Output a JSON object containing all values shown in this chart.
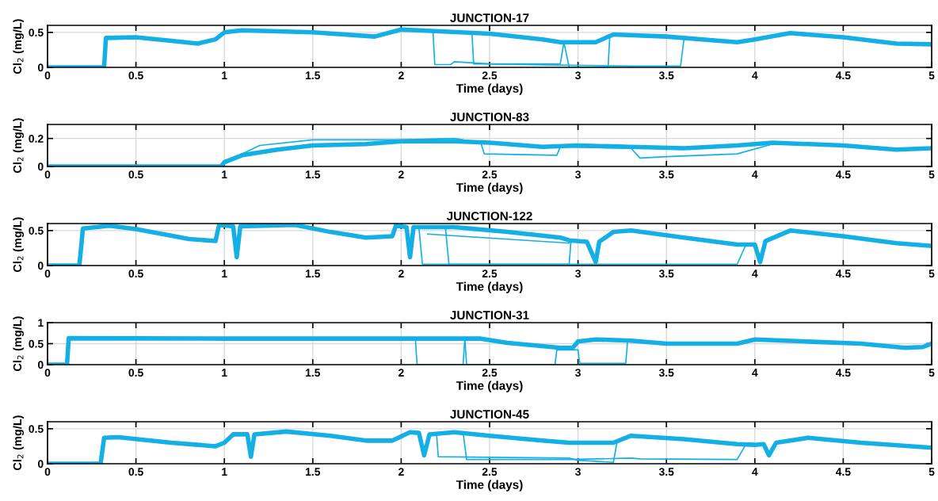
{
  "chart_data": [
    {
      "type": "line",
      "title": "JUNCTION-17",
      "xlabel": "Time (days)",
      "ylabel": "Cl$_{2}$ (mg/L)",
      "xlim": [
        0,
        5
      ],
      "xticks": [
        0,
        0.5,
        1,
        1.5,
        2,
        2.5,
        3,
        3.5,
        4,
        4.5,
        5
      ],
      "ylim": [
        0,
        0.6
      ],
      "yticks": [
        0,
        0.5
      ],
      "grid": true,
      "series": [
        {
          "color": "#14afe4",
          "x": [
            0,
            0.32,
            0.33,
            0.5,
            0.7,
            0.85,
            0.95,
            1.0,
            1.1,
            1.5,
            1.85,
            2.0,
            2.1,
            2.5,
            2.8,
            2.9,
            3.1,
            3.2,
            3.5,
            3.8,
            3.9,
            4.0,
            4.2,
            4.5,
            4.8,
            5.0
          ],
          "values": [
            0,
            0,
            0.42,
            0.43,
            0.38,
            0.34,
            0.4,
            0.5,
            0.53,
            0.5,
            0.44,
            0.54,
            0.53,
            0.48,
            0.4,
            0.36,
            0.36,
            0.47,
            0.44,
            0.38,
            0.36,
            0.4,
            0.49,
            0.43,
            0.34,
            0.33
          ]
        },
        {
          "color": "#14afe4",
          "x": [
            2.0,
            2.18,
            2.19,
            2.28,
            2.3,
            2.5,
            2.95,
            3.3,
            3.58,
            3.6,
            3.7
          ],
          "values": [
            0.54,
            0.51,
            0.04,
            0.04,
            0.08,
            0.05,
            0.03,
            0.02,
            0.02,
            0.42,
            0.41
          ]
        },
        {
          "color": "#14afe4",
          "x": [
            2.0,
            2.4,
            2.41,
            2.9,
            2.92,
            2.95,
            3.17,
            3.18,
            3.5
          ],
          "values": [
            0.54,
            0.49,
            0.05,
            0.05,
            0.36,
            0.0,
            0.0,
            0.46,
            0.44
          ]
        }
      ]
    },
    {
      "type": "line",
      "title": "JUNCTION-83",
      "xlabel": "Time (days)",
      "ylabel": "Cl$_{2}$ (mg/L)",
      "xlim": [
        0,
        5
      ],
      "xticks": [
        0,
        0.5,
        1,
        1.5,
        2,
        2.5,
        3,
        3.5,
        4,
        4.5,
        5
      ],
      "ylim": [
        0,
        0.3
      ],
      "yticks": [
        0,
        0.2
      ],
      "grid": true,
      "series": [
        {
          "color": "#14afe4",
          "x": [
            0,
            0.98,
            1.0,
            1.1,
            1.3,
            1.5,
            1.8,
            2.0,
            2.3,
            2.5,
            2.8,
            3.0,
            3.3,
            3.6,
            3.9,
            4.1,
            4.5,
            4.8,
            5.0
          ],
          "values": [
            0,
            0,
            0.03,
            0.08,
            0.12,
            0.15,
            0.16,
            0.18,
            0.18,
            0.17,
            0.14,
            0.15,
            0.14,
            0.13,
            0.15,
            0.17,
            0.15,
            0.12,
            0.13
          ]
        },
        {
          "color": "#14afe4",
          "x": [
            1.0,
            1.2,
            1.5,
            2.0,
            2.3,
            2.45,
            2.47,
            2.88,
            2.9,
            3.3,
            3.35,
            3.5,
            3.9,
            4.1,
            4.5
          ],
          "values": [
            0.03,
            0.15,
            0.19,
            0.19,
            0.2,
            0.17,
            0.09,
            0.08,
            0.14,
            0.13,
            0.06,
            0.07,
            0.09,
            0.16,
            0.15
          ]
        }
      ]
    },
    {
      "type": "line",
      "title": "JUNCTION-122",
      "xlabel": "Time (days)",
      "ylabel": "Cl$_{2}$ (mg/L)",
      "xlim": [
        0,
        5
      ],
      "xticks": [
        0,
        0.5,
        1,
        1.5,
        2,
        2.5,
        3,
        3.5,
        4,
        4.5,
        5
      ],
      "ylim": [
        0,
        0.6
      ],
      "yticks": [
        0,
        0.5
      ],
      "grid": true,
      "series": [
        {
          "color": "#14afe4",
          "x": [
            0,
            0.18,
            0.2,
            0.35,
            0.5,
            0.8,
            0.95,
            0.97,
            1.05,
            1.07,
            1.09,
            1.4,
            1.6,
            1.8,
            1.95,
            1.97,
            2.03,
            2.05,
            2.07,
            2.3,
            2.6,
            2.9,
            2.95,
            3.05,
            3.1,
            3.12,
            3.2,
            3.3,
            3.6,
            3.9,
            4.0,
            4.03,
            4.06,
            4.2,
            4.5,
            4.8,
            5.0
          ],
          "values": [
            0,
            0,
            0.53,
            0.57,
            0.52,
            0.38,
            0.35,
            0.58,
            0.56,
            0.12,
            0.56,
            0.58,
            0.48,
            0.4,
            0.42,
            0.57,
            0.55,
            0.12,
            0.55,
            0.55,
            0.48,
            0.4,
            0.36,
            0.34,
            0.05,
            0.34,
            0.48,
            0.5,
            0.4,
            0.3,
            0.3,
            0.05,
            0.35,
            0.5,
            0.42,
            0.32,
            0.28
          ]
        },
        {
          "color": "#14afe4",
          "x": [
            2.1,
            2.12,
            2.4,
            2.95,
            2.96
          ],
          "values": [
            0.55,
            0.02,
            0.02,
            0.02,
            0.35
          ]
        },
        {
          "color": "#14afe4",
          "x": [
            2.25,
            2.27,
            3.9,
            3.95
          ],
          "values": [
            0.55,
            0.02,
            0.02,
            0.3
          ]
        },
        {
          "color": "#14afe4",
          "x": [
            2.15,
            2.95
          ],
          "values": [
            0.45,
            0.32
          ]
        }
      ]
    },
    {
      "type": "line",
      "title": "JUNCTION-31",
      "xlabel": "Time (days)",
      "ylabel": "Cl$_{2}$ (mg/L)",
      "xlim": [
        0,
        5
      ],
      "xticks": [
        0,
        0.5,
        1,
        1.5,
        2,
        2.5,
        3,
        3.5,
        4,
        4.5,
        5
      ],
      "ylim": [
        0,
        1
      ],
      "yticks": [
        0,
        0.5,
        1
      ],
      "grid": true,
      "series": [
        {
          "color": "#14afe4",
          "x": [
            0,
            0.11,
            0.12,
            1.0,
            2.0,
            2.45,
            2.6,
            2.9,
            2.97,
            3.0,
            3.1,
            3.3,
            3.5,
            3.9,
            4.0,
            4.3,
            4.6,
            4.85,
            4.95,
            5.0
          ],
          "values": [
            0,
            0,
            0.63,
            0.62,
            0.62,
            0.62,
            0.52,
            0.4,
            0.4,
            0.55,
            0.6,
            0.57,
            0.5,
            0.5,
            0.6,
            0.55,
            0.5,
            0.4,
            0.42,
            0.5
          ]
        },
        {
          "color": "#14afe4",
          "x": [
            2.08,
            2.09,
            2.35,
            2.36
          ],
          "values": [
            0.62,
            0.0,
            0.0,
            0.62
          ]
        },
        {
          "color": "#14afe4",
          "x": [
            2.36,
            2.37,
            2.87,
            2.88,
            3.0,
            3.01,
            3.27,
            3.28
          ],
          "values": [
            0.62,
            0.0,
            0.0,
            0.35,
            0.35,
            0.03,
            0.03,
            0.55
          ]
        }
      ]
    },
    {
      "type": "line",
      "title": "JUNCTION-45",
      "xlabel": "Time (days)",
      "ylabel": "Cl$_{2}$ (mg/L)",
      "xlim": [
        0,
        5
      ],
      "xticks": [
        0,
        0.5,
        1,
        1.5,
        2,
        2.5,
        3,
        3.5,
        4,
        4.5,
        5
      ],
      "ylim": [
        0,
        0.6
      ],
      "yticks": [
        0,
        0.5
      ],
      "grid": true,
      "series": [
        {
          "color": "#14afe4",
          "x": [
            0,
            0.3,
            0.32,
            0.4,
            0.7,
            0.95,
            1.0,
            1.05,
            1.13,
            1.15,
            1.17,
            1.35,
            1.6,
            1.8,
            1.95,
            2.05,
            2.1,
            2.13,
            2.16,
            2.3,
            2.5,
            2.8,
            2.95,
            3.2,
            3.3,
            3.6,
            3.9,
            4.0,
            4.05,
            4.08,
            4.12,
            4.3,
            4.6,
            5.0
          ],
          "values": [
            0,
            0,
            0.37,
            0.38,
            0.3,
            0.25,
            0.3,
            0.42,
            0.42,
            0.1,
            0.42,
            0.46,
            0.4,
            0.33,
            0.33,
            0.45,
            0.44,
            0.12,
            0.42,
            0.45,
            0.4,
            0.33,
            0.3,
            0.3,
            0.4,
            0.35,
            0.28,
            0.27,
            0.28,
            0.12,
            0.3,
            0.37,
            0.3,
            0.23
          ]
        },
        {
          "color": "#14afe4",
          "x": [
            2.2,
            2.21,
            2.6,
            2.95,
            3.0,
            3.2,
            3.22
          ],
          "values": [
            0.42,
            0.1,
            0.09,
            0.08,
            0.05,
            0.02,
            0.3
          ]
        },
        {
          "color": "#14afe4",
          "x": [
            2.35,
            2.37,
            2.95,
            3.3,
            3.35,
            3.9,
            3.95
          ],
          "values": [
            0.45,
            0.06,
            0.06,
            0.08,
            0.07,
            0.06,
            0.28
          ]
        }
      ]
    }
  ]
}
